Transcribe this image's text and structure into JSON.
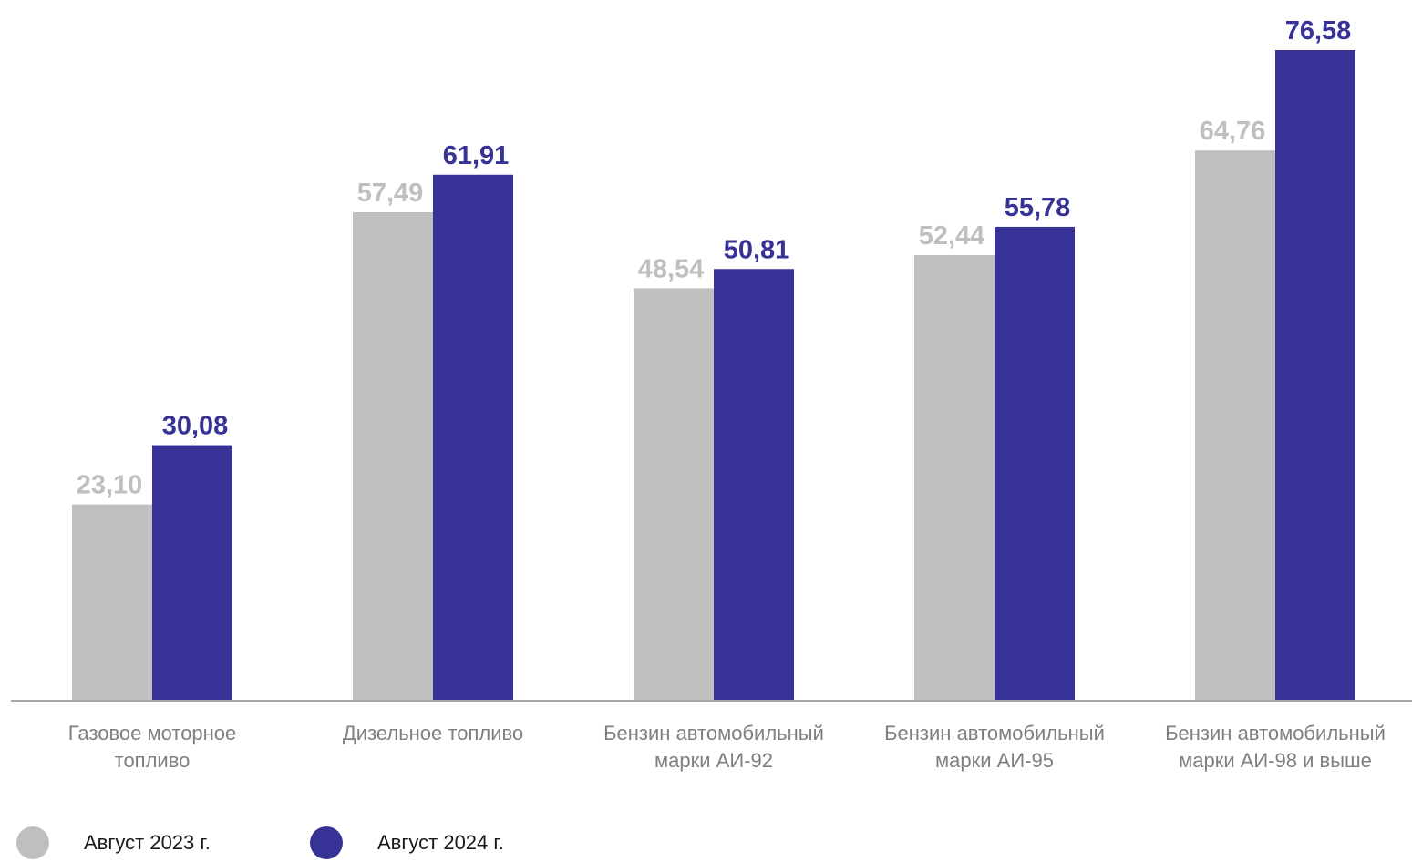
{
  "chart_data": {
    "type": "bar",
    "categories": [
      [
        "Газовое моторное",
        "топливо"
      ],
      [
        "Дизельное топливо"
      ],
      [
        "Бензин автомобильный",
        "марки АИ-92"
      ],
      [
        "Бензин автомобильный",
        "марки АИ-95"
      ],
      [
        "Бензин автомобильный",
        "марки АИ-98 и выше"
      ]
    ],
    "series": [
      {
        "name": "Август 2023 г.",
        "color": "#bfbfbf",
        "values": [
          23.1,
          57.49,
          48.54,
          52.44,
          64.76
        ],
        "labels": [
          "23,10",
          "57,49",
          "48,54",
          "52,44",
          "64,76"
        ]
      },
      {
        "name": "Август 2024 г.",
        "color": "#373296",
        "values": [
          30.08,
          61.91,
          50.81,
          55.78,
          76.58
        ],
        "labels": [
          "30,08",
          "61,91",
          "50,81",
          "55,78",
          "76,58"
        ]
      }
    ],
    "ylim": [
      0,
      76.58
    ],
    "grid": false,
    "legend_position": "bottom-left"
  }
}
